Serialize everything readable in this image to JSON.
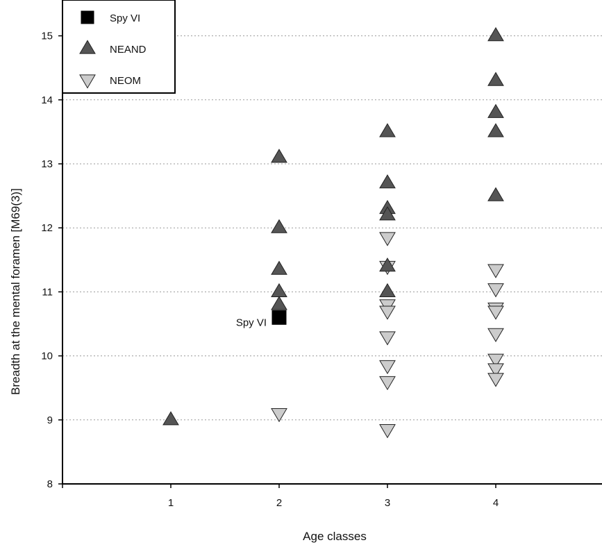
{
  "chart_data": {
    "type": "scatter",
    "xlabel": "Age classes",
    "ylabel": "Breadth at the mental foramen [M69(3)]",
    "xlim": [
      0,
      5
    ],
    "ylim": [
      8,
      15.5
    ],
    "x_ticks": [
      1,
      2,
      3,
      4
    ],
    "y_ticks": [
      8,
      9,
      10,
      11,
      12,
      13,
      14,
      15
    ],
    "grid": "horizontal dotted",
    "legend_position": "top-left",
    "series": [
      {
        "name": "Spy VI",
        "marker": "square",
        "color": "#000000",
        "points": [
          {
            "x": 2,
            "y": 10.6
          }
        ]
      },
      {
        "name": "NEAND",
        "marker": "triangle-up",
        "color": "#555555",
        "points": [
          {
            "x": 1,
            "y": 9.0
          },
          {
            "x": 2,
            "y": 13.1
          },
          {
            "x": 2,
            "y": 12.0
          },
          {
            "x": 2,
            "y": 11.35
          },
          {
            "x": 2,
            "y": 11.0
          },
          {
            "x": 2,
            "y": 10.8
          },
          {
            "x": 3,
            "y": 13.5
          },
          {
            "x": 3,
            "y": 12.7
          },
          {
            "x": 3,
            "y": 12.3
          },
          {
            "x": 3,
            "y": 12.2
          },
          {
            "x": 3,
            "y": 11.4
          },
          {
            "x": 3,
            "y": 11.0
          },
          {
            "x": 4,
            "y": 15.0
          },
          {
            "x": 4,
            "y": 14.3
          },
          {
            "x": 4,
            "y": 13.8
          },
          {
            "x": 4,
            "y": 13.5
          },
          {
            "x": 4,
            "y": 12.5
          }
        ]
      },
      {
        "name": "NEOM",
        "marker": "triangle-down",
        "color": "#cccccc",
        "points": [
          {
            "x": 2,
            "y": 9.1
          },
          {
            "x": 3,
            "y": 11.85
          },
          {
            "x": 3,
            "y": 11.4
          },
          {
            "x": 3,
            "y": 10.8
          },
          {
            "x": 3,
            "y": 10.7
          },
          {
            "x": 3,
            "y": 10.3
          },
          {
            "x": 3,
            "y": 9.85
          },
          {
            "x": 3,
            "y": 9.6
          },
          {
            "x": 3,
            "y": 8.85
          },
          {
            "x": 4,
            "y": 11.35
          },
          {
            "x": 4,
            "y": 11.05
          },
          {
            "x": 4,
            "y": 10.75
          },
          {
            "x": 4,
            "y": 10.7
          },
          {
            "x": 4,
            "y": 10.35
          },
          {
            "x": 4,
            "y": 9.95
          },
          {
            "x": 4,
            "y": 9.8
          },
          {
            "x": 4,
            "y": 9.65
          }
        ]
      }
    ],
    "annotations": [
      {
        "text": "Spy VI",
        "x": 2,
        "y": 10.6
      }
    ]
  }
}
